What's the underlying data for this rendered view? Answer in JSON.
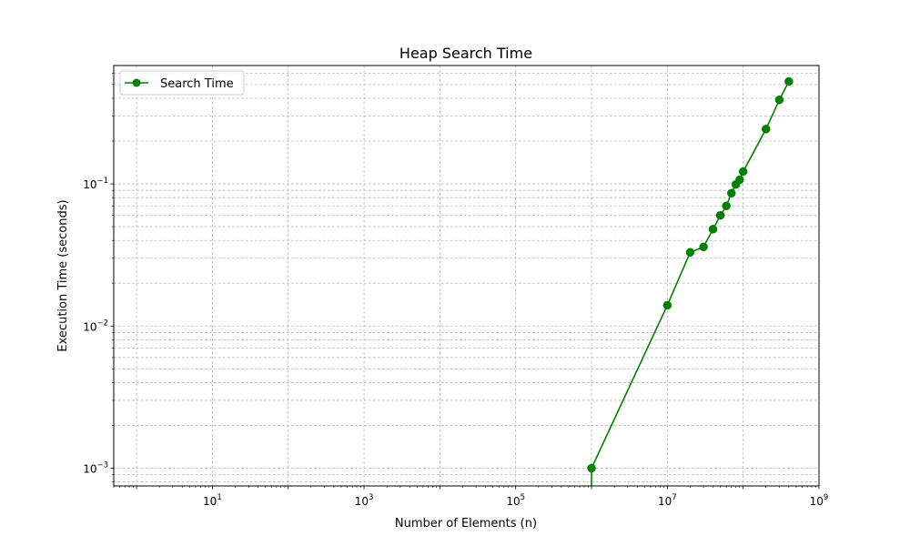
{
  "chart_data": {
    "type": "line",
    "title": "Heap Search Time",
    "xlabel": "Number of Elements (n)",
    "ylabel": "Execution Time (seconds)",
    "x_scale": "log",
    "y_scale": "log",
    "xlim": [
      0.5,
      1000000000
    ],
    "ylim": [
      0.00075,
      0.68
    ],
    "grid": true,
    "legend_position": "top-left",
    "x_ticks": [
      {
        "base": "10",
        "exp": "1",
        "value": 10
      },
      {
        "base": "10",
        "exp": "3",
        "value": 1000
      },
      {
        "base": "10",
        "exp": "5",
        "value": 100000
      },
      {
        "base": "10",
        "exp": "7",
        "value": 10000000
      },
      {
        "base": "10",
        "exp": "9",
        "value": 1000000000
      }
    ],
    "y_ticks": [
      {
        "base": "10",
        "exp": "−3",
        "value": 0.001
      },
      {
        "base": "10",
        "exp": "−2",
        "value": 0.01
      },
      {
        "base": "10",
        "exp": "−1",
        "value": 0.1
      }
    ],
    "series": [
      {
        "name": "Search Time",
        "color": "#008000",
        "marker": "circle",
        "x": [
          0,
          1000000,
          10000000,
          20000000,
          30000000,
          40000000,
          50000000,
          60000000,
          70000000,
          80000000,
          90000000,
          100000000,
          200000000,
          300000000,
          400000000
        ],
        "y": [
          0,
          0.001,
          0.014,
          0.033,
          0.036,
          0.048,
          0.06,
          0.07,
          0.086,
          0.099,
          0.107,
          0.122,
          0.243,
          0.39,
          0.525
        ]
      }
    ]
  }
}
